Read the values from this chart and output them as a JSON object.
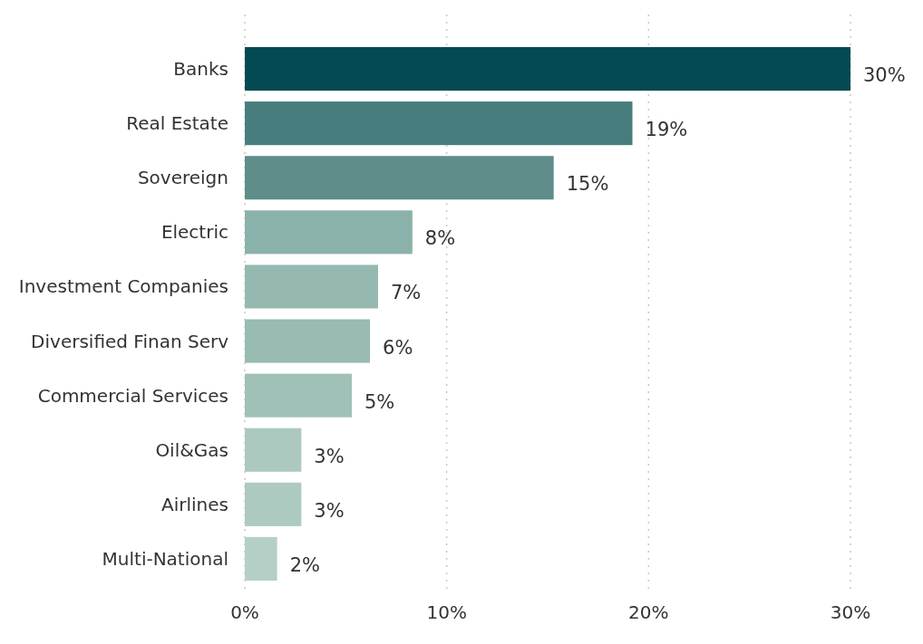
{
  "chart_data": {
    "type": "bar",
    "orientation": "horizontal",
    "categories": [
      "Banks",
      "Real Estate",
      "Sovereign",
      "Electric",
      "Investment Companies",
      "Diversified Finan Serv",
      "Commercial Services",
      "Oil&Gas",
      "Airlines",
      "Multi-National"
    ],
    "values": [
      30.0,
      19.2,
      15.3,
      8.3,
      6.6,
      6.2,
      5.3,
      2.8,
      2.8,
      1.6
    ],
    "value_labels": [
      "30%",
      "19%",
      "15%",
      "8%",
      "7%",
      "6%",
      "5%",
      "3%",
      "3%",
      "2%"
    ],
    "colors": [
      "#034a52",
      "#477d7d",
      "#5e8d8a",
      "#8bb2aa",
      "#95b9b0",
      "#98bbb2",
      "#9fc1b7",
      "#acc9bf",
      "#adcac0",
      "#b4d0c6"
    ],
    "xlim": [
      0,
      30
    ],
    "xticks": [
      {
        "value": 0,
        "label": "0%"
      },
      {
        "value": 10,
        "label": "10%"
      },
      {
        "value": 20,
        "label": "20%"
      },
      {
        "value": 30,
        "label": "30%"
      }
    ],
    "grid": "x"
  }
}
